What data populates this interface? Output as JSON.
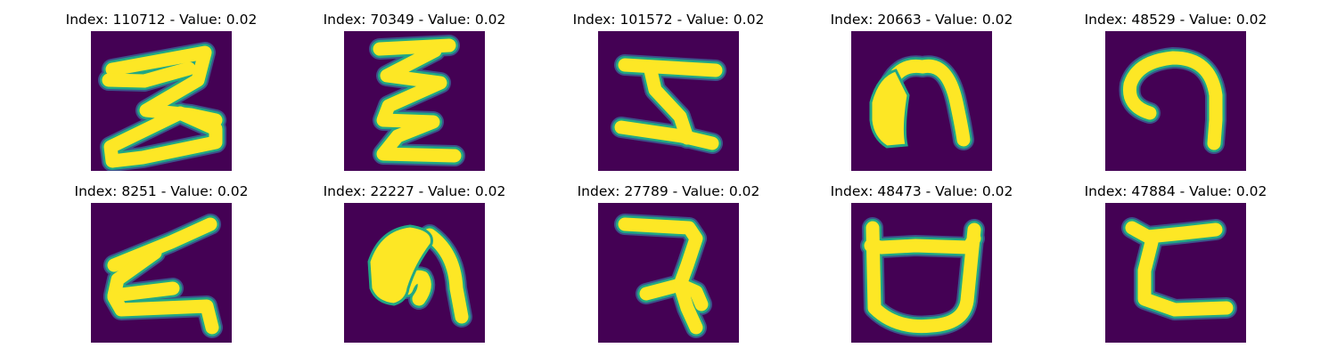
{
  "colors": {
    "background": "#440154",
    "stroke": "#fde725",
    "edge": "#22a884",
    "edge_outer": "#3b528b"
  },
  "panels": [
    {
      "title": "Index: 110712 - Value: 0.02",
      "glyph": "z-shape"
    },
    {
      "title": "Index: 70349 - Value: 0.02",
      "glyph": "zigzag-e"
    },
    {
      "title": "Index: 101572 - Value: 0.02",
      "glyph": "h-shape"
    },
    {
      "title": "Index: 20663 - Value: 0.02",
      "glyph": "arch-filled"
    },
    {
      "title": "Index: 48529 - Value: 0.02",
      "glyph": "hook-arch"
    },
    {
      "title": "Index: 8251 - Value: 0.02",
      "glyph": "reverse-z"
    },
    {
      "title": "Index: 22227 - Value: 0.02",
      "glyph": "arch-blob"
    },
    {
      "title": "Index: 27789 - Value: 0.02",
      "glyph": "hook-three"
    },
    {
      "title": "Index: 48473 - Value: 0.02",
      "glyph": "open-box"
    },
    {
      "title": "Index: 47884 - Value: 0.02",
      "glyph": "c-bracket"
    }
  ]
}
